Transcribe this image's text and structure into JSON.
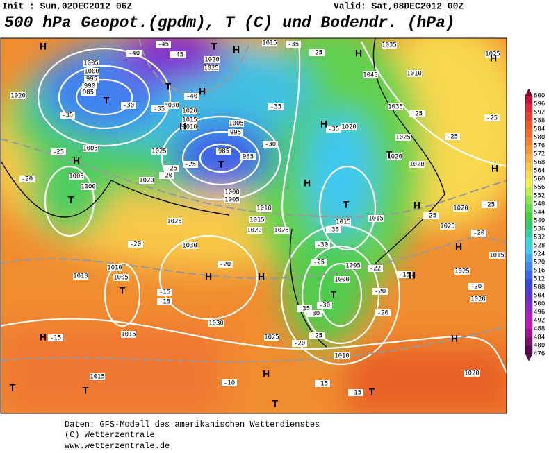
{
  "header": {
    "init": "Init : Sun,02DEC2012 06Z",
    "valid": "Valid: Sat,08DEC2012 00Z",
    "title": "500 hPa Geopot.(gpdm), T (C) und Bodendr. (hPa)"
  },
  "map": {
    "pressure_centers": [
      "H",
      "H",
      "T",
      "H",
      "H",
      "T",
      "H",
      "T",
      "H",
      "T",
      "H",
      "H",
      "T",
      "H",
      "H",
      "T",
      "H",
      "T",
      "H",
      "H",
      "H",
      "T",
      "T",
      "H",
      "H",
      "H",
      "H",
      "T",
      "T",
      "T",
      "T"
    ],
    "isobar_labels": [
      "1020",
      "1005",
      "1000",
      "995",
      "990",
      "985",
      "1030",
      "1020",
      "1015",
      "1010",
      "1005",
      "995",
      "985",
      "985",
      "1025",
      "1020",
      "1005",
      "1005",
      "1000",
      "1025",
      "1030",
      "1010",
      "1005",
      "1010",
      "1015",
      "1030",
      "1025",
      "1015",
      "1010",
      "1020",
      "1015",
      "1020",
      "1025",
      "1035",
      "1040",
      "1035",
      "1020",
      "1025",
      "1020",
      "1020",
      "1020",
      "1025",
      "1015",
      "1025",
      "1020",
      "1015",
      "1015",
      "1005",
      "1000",
      "1010",
      "1015",
      "1020",
      "1025",
      "1000",
      "1005",
      "1010",
      "1025"
    ],
    "temperature_labels": [
      "-40",
      "-45",
      "-45",
      "-40",
      "-35",
      "-30",
      "-35",
      "-25",
      "-20",
      "-35",
      "-25",
      "-35",
      "-35",
      "-30",
      "-25",
      "-25",
      "-20",
      "-35",
      "-30",
      "-25",
      "-20",
      "-20",
      "-15",
      "-15",
      "-15",
      "-30",
      "-35",
      "-30",
      "-25",
      "-20",
      "-20",
      "-20",
      "-15",
      "-20",
      "-25",
      "-25",
      "-25",
      "-25",
      "-20",
      "-10",
      "-15",
      "-15",
      "-25",
      "-22"
    ]
  },
  "colorbar": {
    "labels": [
      600,
      596,
      592,
      588,
      584,
      580,
      576,
      572,
      568,
      564,
      560,
      556,
      552,
      548,
      544,
      540,
      536,
      532,
      528,
      524,
      520,
      516,
      512,
      508,
      504,
      500,
      496,
      492,
      488,
      484,
      480,
      476
    ],
    "colors": [
      "#a0003c",
      "#c8103c",
      "#e0283c",
      "#e84030",
      "#ec5828",
      "#f06c28",
      "#f48030",
      "#f49838",
      "#f8b040",
      "#fcc848",
      "#fce050",
      "#f0f050",
      "#c8f050",
      "#90e850",
      "#60dc48",
      "#40d040",
      "#30c870",
      "#30d0a0",
      "#38d8d0",
      "#40c8f0",
      "#40a8f0",
      "#4088f0",
      "#3868e8",
      "#3848d8",
      "#5038d0",
      "#7030c8",
      "#9028c8",
      "#b020c0",
      "#c018b0",
      "#a01090",
      "#801070",
      "#600858"
    ]
  },
  "footer": {
    "line1": "Daten: GFS-Modell des amerikanischen Wetterdienstes",
    "line2": "(C) Wetterzentrale",
    "line3": "www.wetterzentrale.de"
  }
}
